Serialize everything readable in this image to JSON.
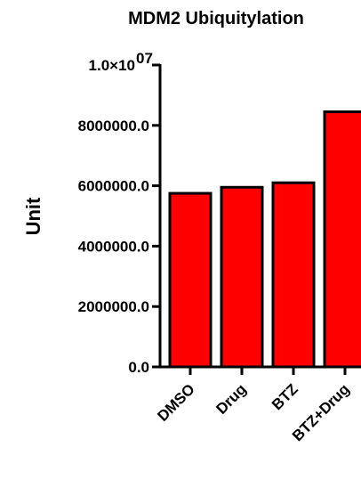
{
  "chart_data": {
    "type": "bar",
    "title": "MDM2 Ubiquitylation",
    "xlabel": "",
    "ylabel": "Unit",
    "categories": [
      "DMSO",
      "Drug",
      "BTZ",
      "BTZ+Drug"
    ],
    "values": [
      5750000,
      5950000,
      6100000,
      8450000
    ],
    "ylim": [
      0,
      10000000
    ],
    "yticks": [
      0,
      2000000,
      4000000,
      6000000,
      8000000,
      10000000
    ],
    "ytick_labels": [
      "0.0",
      "2000000.0",
      "4000000.0",
      "6000000.0",
      "8000000.0",
      "1.0×10"
    ],
    "ytick_top_exponent": "07",
    "bar_color": "#ff0000",
    "edge_color": "#000000",
    "grid": false
  }
}
